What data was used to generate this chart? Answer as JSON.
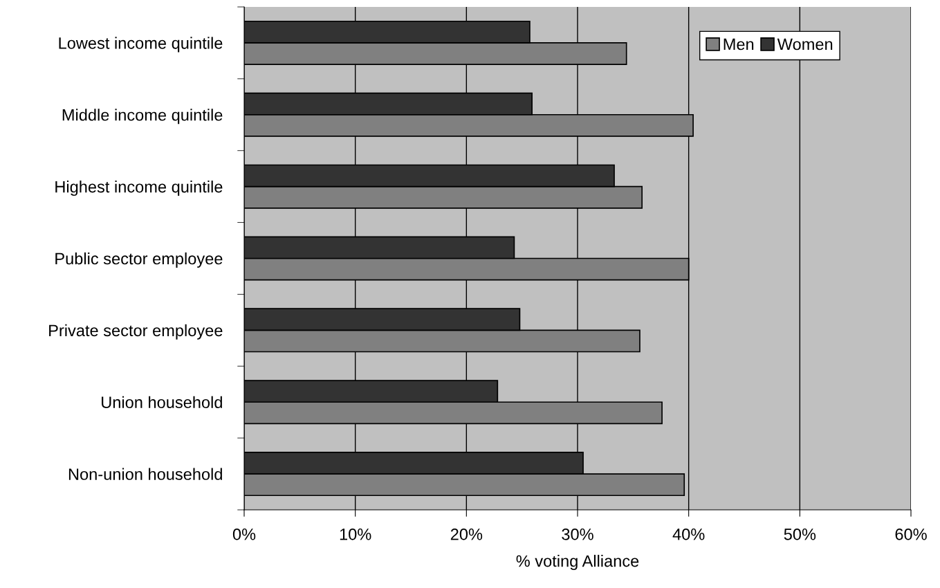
{
  "chart_data": {
    "type": "bar",
    "orientation": "horizontal",
    "xlabel": "% voting Alliance",
    "categories": [
      "Lowest income quintile",
      "Middle income quintile",
      "Highest income quintile",
      "Public sector employee",
      "Private sector employee",
      "Union household",
      "Non-union household"
    ],
    "series": [
      {
        "name": "Men",
        "color": "#808080",
        "values": [
          34.4,
          40.4,
          35.8,
          40.0,
          35.6,
          37.6,
          39.6
        ]
      },
      {
        "name": "Women",
        "color": "#333333",
        "values": [
          25.7,
          25.9,
          33.3,
          24.3,
          24.8,
          22.8,
          30.5
        ]
      }
    ],
    "xlim": [
      0,
      60
    ],
    "xticks": [
      {
        "value": 0,
        "label": "0%"
      },
      {
        "value": 10,
        "label": "10%"
      },
      {
        "value": 20,
        "label": "20%"
      },
      {
        "value": 30,
        "label": "30%"
      },
      {
        "value": 40,
        "label": "40%"
      },
      {
        "value": 50,
        "label": "50%"
      },
      {
        "value": 60,
        "label": "60%"
      }
    ],
    "grid": "x",
    "legend": "top right"
  }
}
